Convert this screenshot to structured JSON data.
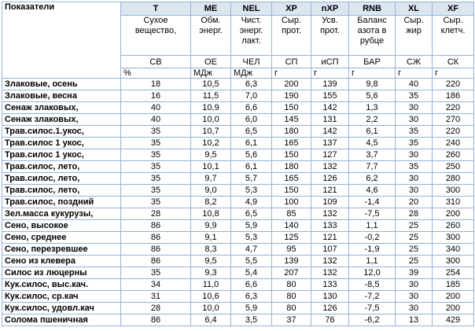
{
  "table": {
    "header": [
      "Показатели",
      "T",
      "ME",
      "NEL",
      "XP",
      "nXP",
      "RNB",
      "XL",
      "XF"
    ],
    "descriptions": [
      "Сухое вещество,",
      "Обм. энерг.",
      "Чист. энерг. лакт.",
      "Сыр. прот.",
      "Усв. прот.",
      "Баланс азота в рубце",
      "Сыр. жир",
      "Сыр. клетч."
    ],
    "abbreviations": [
      "СВ",
      "ОЕ",
      "ЧЕЛ",
      "СП",
      "иСП",
      "БАР",
      "СЖ",
      "СК"
    ],
    "units": [
      "%",
      "МДж",
      "МДж",
      "г",
      "г",
      "г",
      "г",
      "г"
    ],
    "rows": [
      [
        "Злаковые, осень",
        "18",
        "10,5",
        "6,3",
        "200",
        "139",
        "9,8",
        "40",
        "220"
      ],
      [
        "Злаковые, весна",
        "16",
        "11,5",
        "7,0",
        "190",
        "155",
        "5,6",
        "35",
        "186"
      ],
      [
        "Сенаж злаковых,",
        "40",
        "10,9",
        "6,6",
        "150",
        "142",
        "1,3",
        "30",
        "220"
      ],
      [
        "Сенаж злаковых,",
        "40",
        "10,0",
        "6,0",
        "145",
        "131",
        "2,2",
        "30",
        "270"
      ],
      [
        "Трав.силос.1.укос,",
        "35",
        "10,7",
        "6,5",
        "180",
        "142",
        "6,1",
        "35",
        "220"
      ],
      [
        "Трав.силос 1 укос,",
        "35",
        "10,2",
        "6,1",
        "165",
        "137",
        "4,5",
        "35",
        "240"
      ],
      [
        "Трав.силос 1 укос,",
        "35",
        "9,5",
        "5,6",
        "150",
        "127",
        "3,7",
        "30",
        "260"
      ],
      [
        "Трав.силос, лето,",
        "35",
        "10,1",
        "6,1",
        "180",
        "132",
        "7,7",
        "35",
        "250"
      ],
      [
        "Трав.силос, лето,",
        "35",
        "9,7",
        "5,7",
        "165",
        "126",
        "6,2",
        "30",
        "280"
      ],
      [
        "Трав.силос, лето,",
        "35",
        "9,0",
        "5,3",
        "150",
        "121",
        "4,6",
        "30",
        "300"
      ],
      [
        "Трав.силос, поздний",
        "35",
        "8,2",
        "4,9",
        "100",
        "109",
        "-1,4",
        "20",
        "310"
      ],
      [
        "Зел.масса кукурузы,",
        "28",
        "10,8",
        "6,5",
        "85",
        "132",
        "-7,5",
        "28",
        "200"
      ],
      [
        "Сено, высокое",
        "86",
        "9,9",
        "5,9",
        "140",
        "133",
        "1,1",
        "25",
        "260"
      ],
      [
        "Сено, среднее",
        "86",
        "9,1",
        "5,3",
        "125",
        "121",
        "-0,2",
        "25",
        "300"
      ],
      [
        "Сено, перезревшее",
        "86",
        "8,3",
        "4,7",
        "95",
        "107",
        "-1,9",
        "25",
        "340"
      ],
      [
        "Сено из клевера",
        "86",
        "9,5",
        "5,5",
        "139",
        "132",
        "1,1",
        "25",
        "300"
      ],
      [
        "Силос из люцерны",
        "35",
        "9,3",
        "5,4",
        "207",
        "132",
        "12,0",
        "39",
        "254"
      ],
      [
        "Кук.силос, выс.кач.",
        "34",
        "11,0",
        "6,6",
        "80",
        "133",
        "-8,5",
        "30",
        "185"
      ],
      [
        "Кук.силос, ср.кач",
        "31",
        "10,6",
        "6,3",
        "80",
        "130",
        "-7,2",
        "30",
        "200"
      ],
      [
        "Кук.силос, удовл.кач",
        "28",
        "10,0",
        "5,9",
        "80",
        "126",
        "-7,5",
        "30",
        "200"
      ],
      [
        "Солома пшеничная",
        "86",
        "6,4",
        "3,5",
        "37",
        "76",
        "-6,2",
        "13",
        "429"
      ]
    ]
  }
}
